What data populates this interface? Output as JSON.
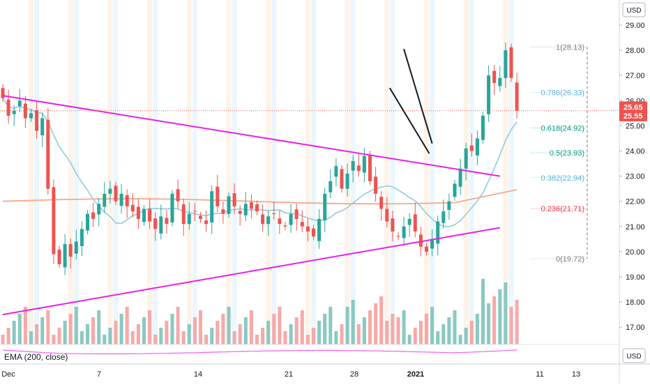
{
  "chart_data": {
    "type": "candlestick",
    "currency_label": "USD",
    "currency_label_bottom": "USD",
    "y_axis": {
      "ticks": [
        "29.00",
        "28.00",
        "27.00",
        "26.00",
        "25.00",
        "24.00",
        "23.00",
        "22.00",
        "21.00",
        "20.00",
        "19.00",
        "18.00",
        "17.00"
      ],
      "range": [
        16.2,
        29.6
      ]
    },
    "x_axis": {
      "ticks": [
        "Dec",
        "7",
        "14",
        "21",
        "28",
        "2021",
        "11",
        "13"
      ]
    },
    "price_badges": [
      {
        "value": "25.65",
        "color": "#ef5350"
      },
      {
        "value": "25.55",
        "color": "#ef5350"
      }
    ],
    "last_price_line": 25.6,
    "fib_levels": [
      {
        "label": "1(28.13)",
        "value": 28.13,
        "color": "#787b86"
      },
      {
        "label": "0.786(26.33)",
        "value": 26.33,
        "color": "#5ab3d6"
      },
      {
        "label": "0.618(24.92)",
        "value": 24.92,
        "color": "#089981"
      },
      {
        "label": "0.5(23.93)",
        "value": 23.93,
        "color": "#089981"
      },
      {
        "label": "0.382(22.94)",
        "value": 22.94,
        "color": "#5ab3d6"
      },
      {
        "label": "0.236(21.71)",
        "value": 21.71,
        "color": "#f23645"
      },
      {
        "label": "0(19.72)",
        "value": 19.72,
        "color": "#787b86"
      }
    ],
    "indicator_label": "EMA (200, close)",
    "trendlines": [
      {
        "name": "upper-triangle-line",
        "color": "#e91ee9",
        "from": [
          0,
          26.2
        ],
        "to": [
          88,
          23.0
        ]
      },
      {
        "name": "lower-triangle-line",
        "color": "#e91ee9",
        "from": [
          0,
          17.5
        ],
        "to": [
          88,
          20.95
        ]
      },
      {
        "name": "wedge-upper-line",
        "color": "#131722",
        "from": [
          71,
          28.05
        ],
        "to": [
          76,
          24.3
        ]
      },
      {
        "name": "wedge-lower-line",
        "color": "#131722",
        "from": [
          68.5,
          26.5
        ],
        "to": [
          75.5,
          23.9
        ]
      }
    ],
    "closes": [
      26.1,
      25.4,
      25.6,
      26.0,
      25.3,
      25.5,
      24.8,
      25.3,
      22.5,
      19.9,
      19.5,
      20.3,
      19.8,
      20.4,
      20.9,
      21.5,
      21.3,
      21.9,
      22.3,
      22.5,
      22.0,
      22.3,
      21.8,
      21.6,
      21.3,
      21.7,
      21.2,
      20.9,
      21.4,
      21.1,
      22.3,
      22.0,
      21.1,
      21.5,
      21.6,
      21.3,
      21.1,
      22.4,
      21.8,
      21.5,
      22.2,
      21.8,
      21.5,
      21.9,
      21.7,
      21.6,
      21.1,
      21.4,
      21.5,
      21.1,
      21.0,
      21.5,
      21.3,
      21.0,
      20.8,
      20.6,
      21.3,
      22.3,
      22.8,
      23.4,
      22.5,
      23.1,
      23.6,
      23.2,
      23.8,
      22.8,
      22.3,
      21.7,
      21.2,
      20.8,
      20.6,
      21.0,
      21.3,
      20.8,
      20.2,
      20.0,
      20.5,
      21.2,
      21.6,
      22.0,
      22.7,
      23.3,
      24.1,
      24.0,
      24.5,
      25.4,
      27.0,
      26.7,
      26.9,
      28.0,
      26.9,
      25.6
    ]
  }
}
